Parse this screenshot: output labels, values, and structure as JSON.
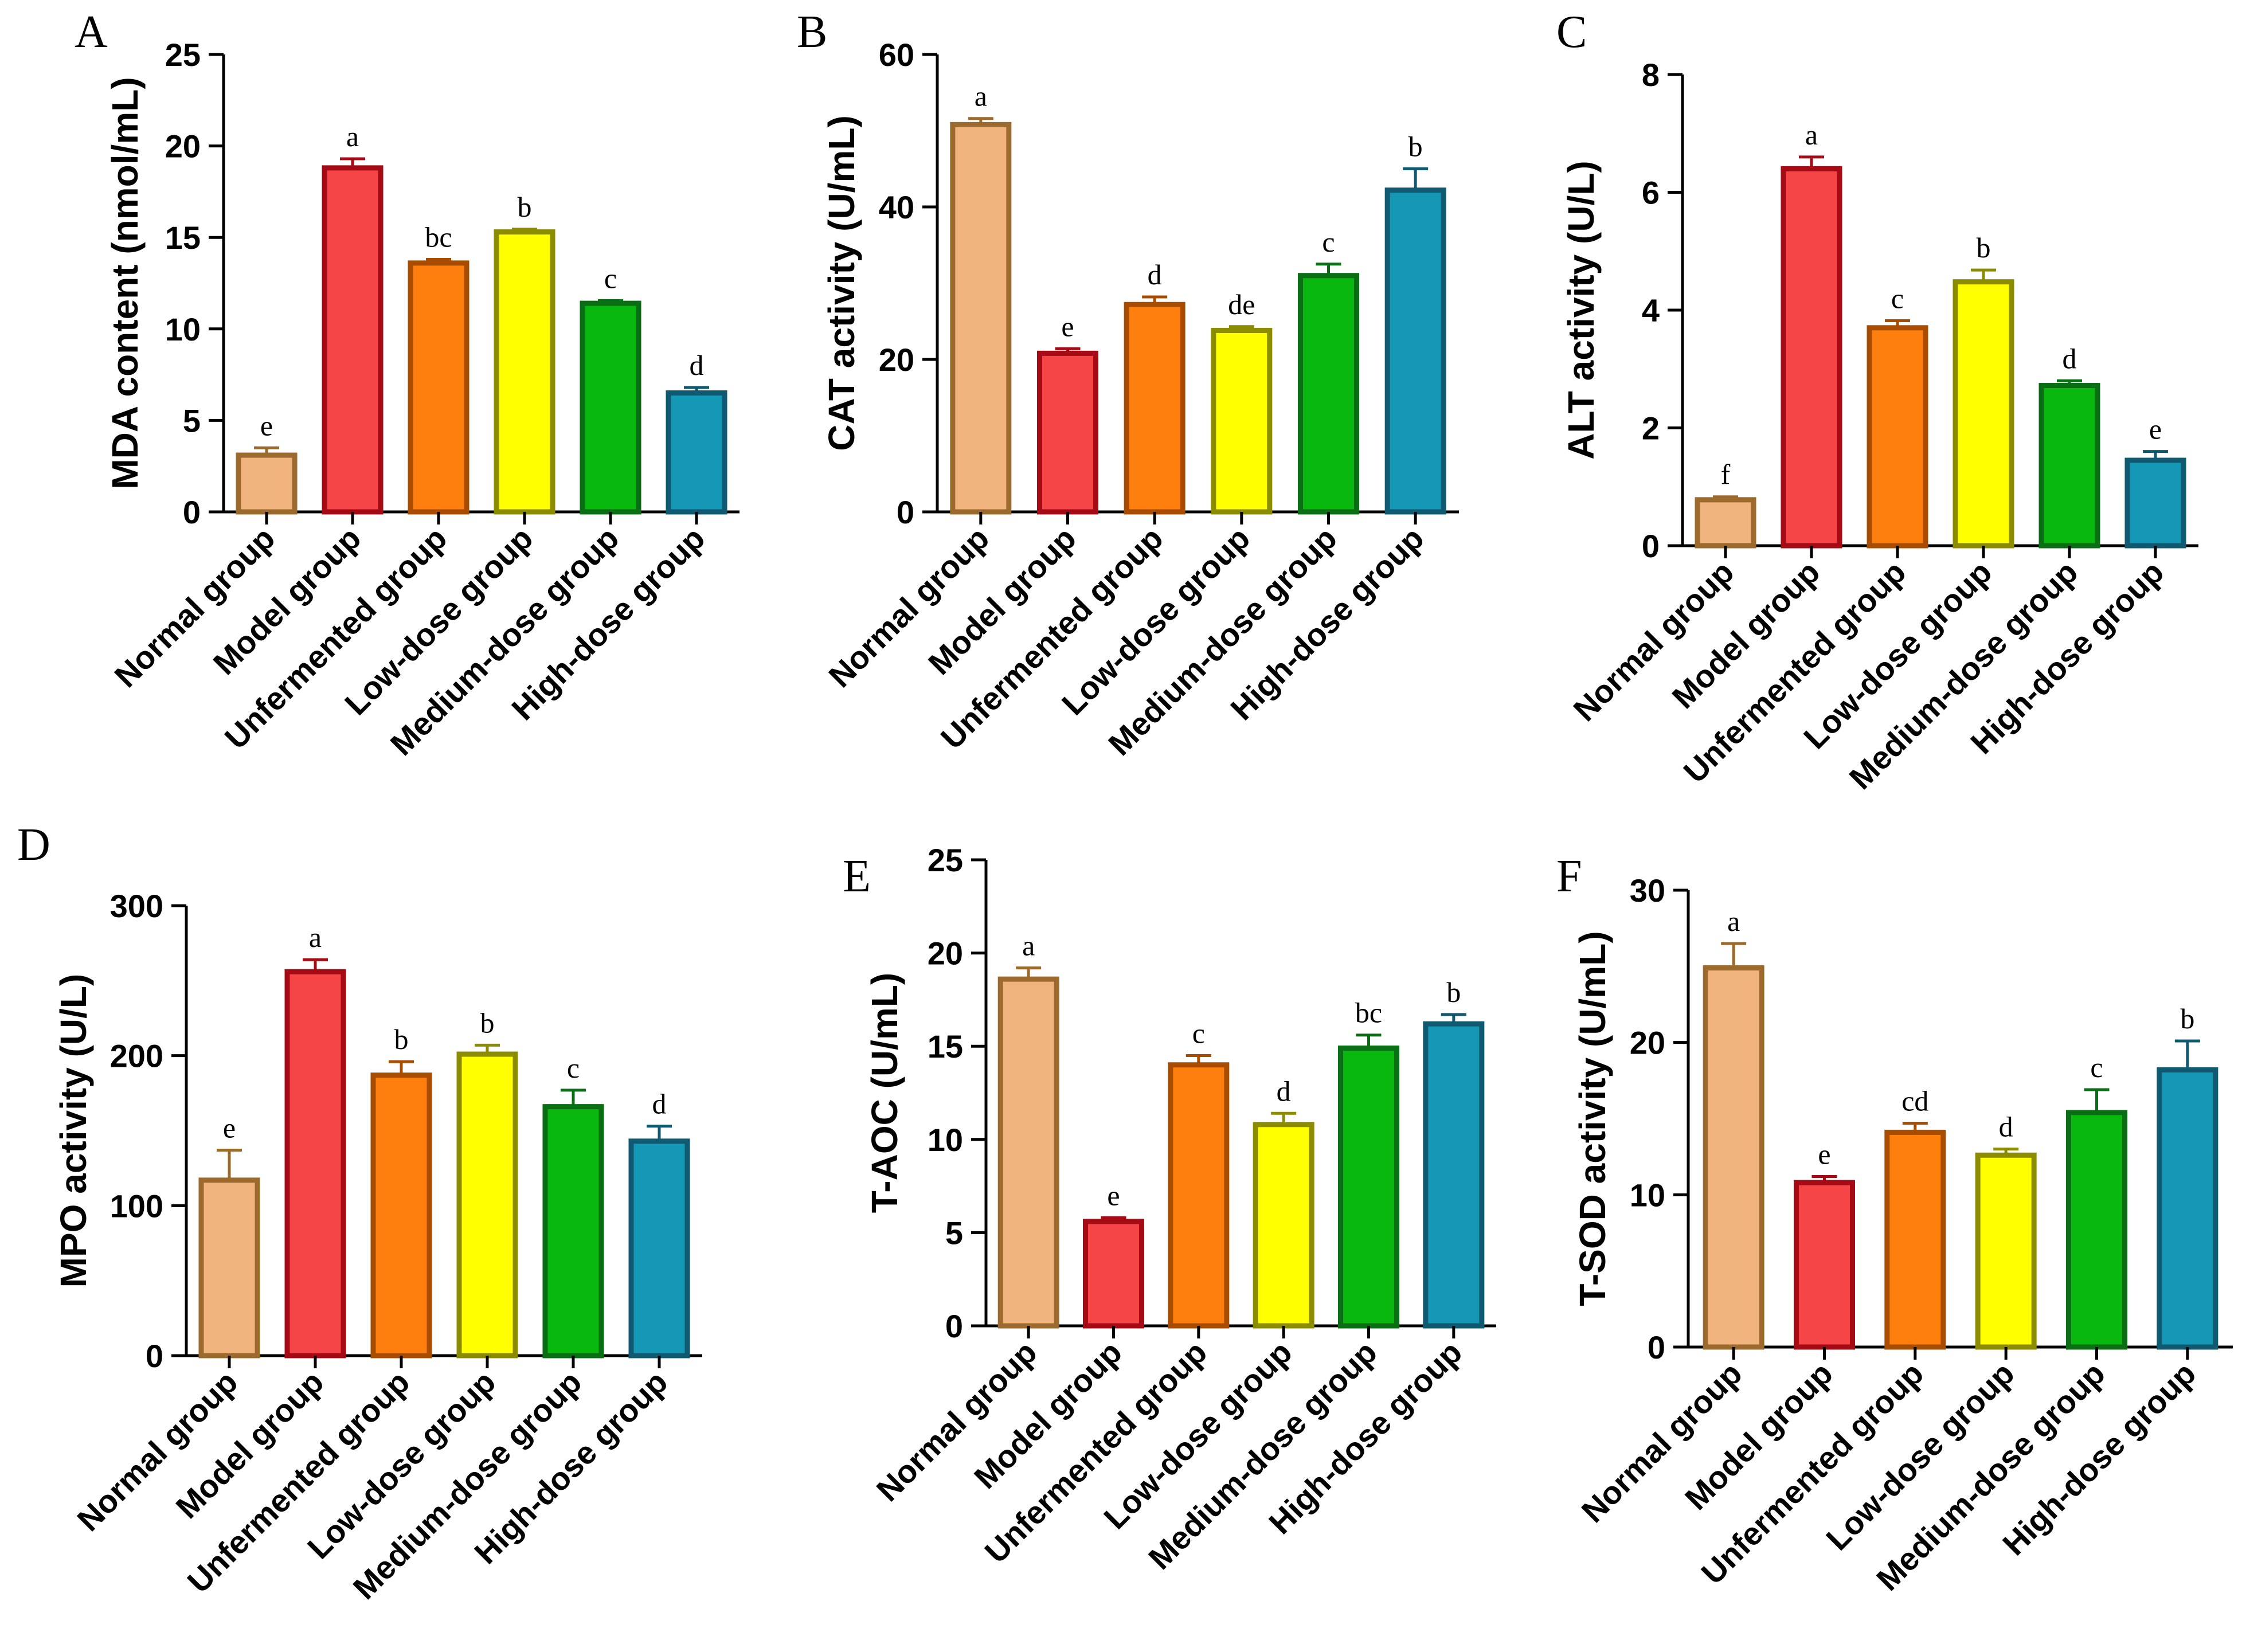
{
  "figure": {
    "group_categories": [
      "Normal group",
      "Model group",
      "Unfermented group",
      "Low-dose group",
      "Medium-dose group",
      "High-dose group"
    ],
    "bar_fill_colors": [
      "#F2B47E",
      "#F54547",
      "#FF7F0E",
      "#FFFF00",
      "#09B80E",
      "#1597B6"
    ],
    "bar_edge_colors": [
      "#9C6A2D",
      "#A50B14",
      "#A84C00",
      "#8C8C00",
      "#0A6E14",
      "#0F5A70"
    ]
  },
  "chart_data": [
    {
      "panel": "A",
      "type": "bar",
      "ylabel": "MDA content (nmol/mL)",
      "categories": [
        "Normal group",
        "Model group",
        "Unfermented group",
        "Low-dose group",
        "Medium-dose group",
        "High-dose group"
      ],
      "values": [
        3.1,
        18.8,
        13.6,
        15.3,
        11.4,
        6.5
      ],
      "errors": [
        0.4,
        0.5,
        0.2,
        0.15,
        0.15,
        0.3
      ],
      "significance": [
        "e",
        "a",
        "bc",
        "b",
        "c",
        "d"
      ],
      "ylim": [
        0,
        25
      ],
      "yticks": [
        0,
        5,
        10,
        15,
        20,
        25
      ],
      "ytick_labels": [
        "0",
        "5",
        "10",
        "15",
        "20",
        "25"
      ]
    },
    {
      "panel": "B",
      "type": "bar",
      "ylabel": "CAT activity (U/mL)",
      "categories": [
        "Normal group",
        "Model group",
        "Unfermented group",
        "Low-dose group",
        "Medium-dose group",
        "High-dose group"
      ],
      "values": [
        50.8,
        20.8,
        27.2,
        23.8,
        31.0,
        42.2
      ],
      "errors": [
        0.8,
        0.6,
        1.0,
        0.5,
        1.5,
        2.8
      ],
      "significance": [
        "a",
        "e",
        "d",
        "de",
        "c",
        "b"
      ],
      "ylim": [
        0,
        60
      ],
      "yticks": [
        0,
        20,
        40,
        60
      ],
      "ytick_labels": [
        "0",
        "20",
        "40",
        "60"
      ]
    },
    {
      "panel": "C",
      "type": "bar",
      "ylabel": "ALT activity (U/L)",
      "categories": [
        "Normal group",
        "Model group",
        "Unfermented group",
        "Low-dose group",
        "Medium-dose group",
        "High-dose group"
      ],
      "values": [
        0.78,
        6.4,
        3.7,
        4.48,
        2.72,
        1.45
      ],
      "errors": [
        0.05,
        0.2,
        0.12,
        0.2,
        0.08,
        0.15
      ],
      "significance": [
        "f",
        "a",
        "c",
        "b",
        "d",
        "e"
      ],
      "ylim": [
        0,
        8
      ],
      "yticks": [
        0,
        2,
        4,
        6,
        8
      ],
      "ytick_labels": [
        "0",
        "2",
        "4",
        "6",
        "8"
      ]
    },
    {
      "panel": "D",
      "type": "bar",
      "ylabel": "MPO activity (U/L)",
      "categories": [
        "Normal group",
        "Model group",
        "Unfermented group",
        "Low-dose group",
        "Medium-dose group",
        "High-dose group"
      ],
      "values": [
        117,
        256,
        187,
        201,
        166,
        143
      ],
      "errors": [
        20,
        8,
        9,
        6,
        11,
        10
      ],
      "significance": [
        "e",
        "a",
        "b",
        "b",
        "c",
        "d"
      ],
      "ylim": [
        0,
        300
      ],
      "yticks": [
        0,
        100,
        200,
        300
      ],
      "ytick_labels": [
        "0",
        "100",
        "200",
        "300"
      ]
    },
    {
      "panel": "E",
      "type": "bar",
      "ylabel": "T-AOC (U/mL)",
      "categories": [
        "Normal group",
        "Model group",
        "Unfermented group",
        "Low-dose group",
        "Medium-dose group",
        "High-dose group"
      ],
      "values": [
        18.6,
        5.6,
        14.0,
        10.8,
        14.9,
        16.2
      ],
      "errors": [
        0.6,
        0.2,
        0.5,
        0.6,
        0.7,
        0.5
      ],
      "significance": [
        "a",
        "e",
        "c",
        "d",
        "bc",
        "b"
      ],
      "ylim": [
        0,
        25
      ],
      "yticks": [
        0,
        5,
        10,
        15,
        20,
        25
      ],
      "ytick_labels": [
        "0",
        "5",
        "10",
        "15",
        "20",
        "25"
      ]
    },
    {
      "panel": "F",
      "type": "bar",
      "ylabel": "T-SOD activity (U/mL)",
      "categories": [
        "Normal group",
        "Model group",
        "Unfermented group",
        "Low-dose group",
        "Medium-dose group",
        "High-dose group"
      ],
      "values": [
        24.9,
        10.8,
        14.1,
        12.6,
        15.4,
        18.2
      ],
      "errors": [
        1.6,
        0.4,
        0.6,
        0.4,
        1.5,
        1.9
      ],
      "significance": [
        "a",
        "e",
        "cd",
        "d",
        "c",
        "b"
      ],
      "ylim": [
        0,
        30
      ],
      "yticks": [
        0,
        10,
        20,
        30
      ],
      "ytick_labels": [
        "0",
        "10",
        "20",
        "30"
      ]
    }
  ]
}
